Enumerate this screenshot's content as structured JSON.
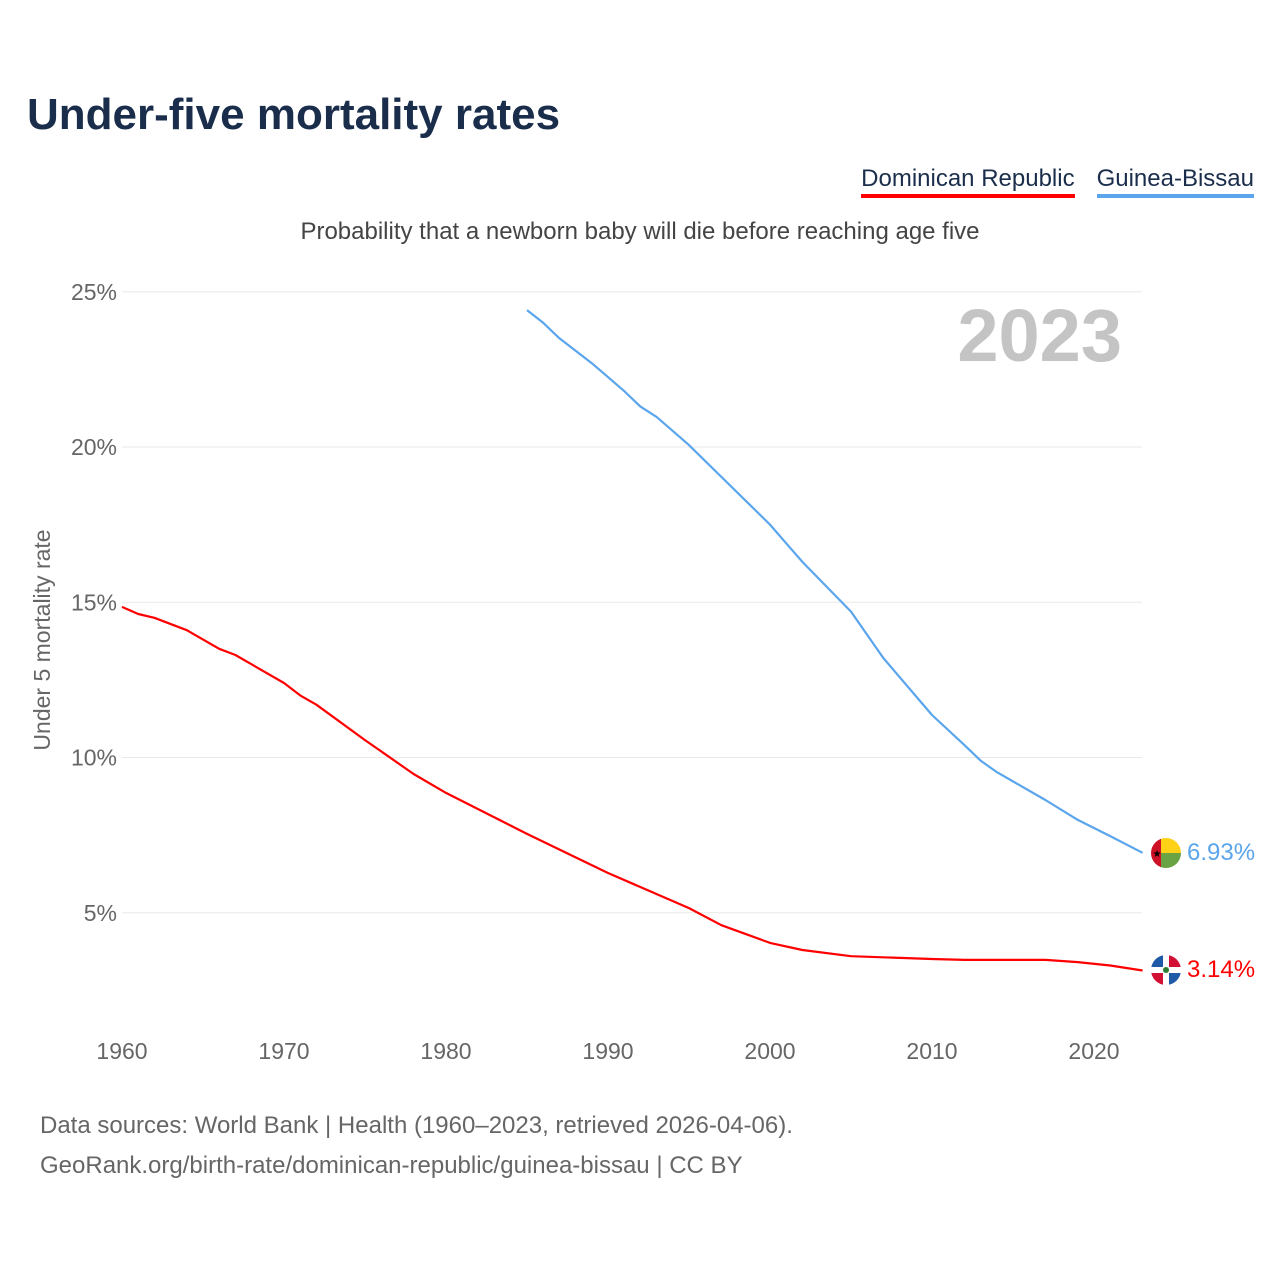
{
  "title": "Under-five mortality rates",
  "subtitle": "Probability that a newborn baby will die before reaching age five",
  "footer": {
    "line1": "Data sources: World Bank | Health (1960–2023, retrieved 2026-04-06).",
    "line2": "GeoRank.org/birth-rate/dominican-republic/guinea-bissau | CC BY"
  },
  "chart_data": {
    "type": "line",
    "title": "Under-five mortality rates",
    "ylabel": "Under 5 mortality rate",
    "xlabel": "",
    "year_label": "2023",
    "xlim": [
      1960,
      2023
    ],
    "ylim": [
      0,
      25
    ],
    "x_ticks": [
      "1960",
      "1970",
      "1980",
      "1990",
      "2000",
      "2010",
      "2020"
    ],
    "y_ticks": [
      {
        "v": 5,
        "label": "5%"
      },
      {
        "v": 10,
        "label": "10%"
      },
      {
        "v": 15,
        "label": "15%"
      },
      {
        "v": 20,
        "label": "20%"
      },
      {
        "v": 25,
        "label": "25%"
      }
    ],
    "grid": true,
    "legend_position": "top-right",
    "series": [
      {
        "name": "Dominican Republic",
        "color": "#ff0000",
        "end_label": "3.14%",
        "flag": "dominican-republic-flag",
        "points": [
          [
            1960,
            14.85
          ],
          [
            1961,
            14.62
          ],
          [
            1962,
            14.5
          ],
          [
            1964,
            14.1
          ],
          [
            1966,
            13.5
          ],
          [
            1967,
            13.3
          ],
          [
            1970,
            12.4
          ],
          [
            1971,
            12.0
          ],
          [
            1972,
            11.7
          ],
          [
            1975,
            10.56
          ],
          [
            1978,
            9.47
          ],
          [
            1980,
            8.86
          ],
          [
            1985,
            7.54
          ],
          [
            1990,
            6.28
          ],
          [
            1995,
            5.15
          ],
          [
            1997,
            4.6
          ],
          [
            2000,
            4.03
          ],
          [
            2002,
            3.8
          ],
          [
            2005,
            3.6
          ],
          [
            2010,
            3.51
          ],
          [
            2012,
            3.48
          ],
          [
            2017,
            3.48
          ],
          [
            2019,
            3.41
          ],
          [
            2021,
            3.3
          ],
          [
            2023,
            3.14
          ]
        ]
      },
      {
        "name": "Guinea-Bissau",
        "color": "#5aa5ec",
        "end_label": "6.93%",
        "flag": "guinea-bissau-flag",
        "points": [
          [
            1985,
            24.41
          ],
          [
            1986,
            24.0
          ],
          [
            1987,
            23.5
          ],
          [
            1989,
            22.7
          ],
          [
            1990,
            22.25
          ],
          [
            1991,
            21.8
          ],
          [
            1992,
            21.3
          ],
          [
            1993,
            20.97
          ],
          [
            1995,
            20.06
          ],
          [
            2000,
            17.5
          ],
          [
            2001,
            16.9
          ],
          [
            2002,
            16.3
          ],
          [
            2005,
            14.7
          ],
          [
            2006,
            13.95
          ],
          [
            2007,
            13.2
          ],
          [
            2010,
            11.37
          ],
          [
            2012,
            10.4
          ],
          [
            2013,
            9.9
          ],
          [
            2014,
            9.53
          ],
          [
            2017,
            8.63
          ],
          [
            2019,
            7.99
          ],
          [
            2021,
            7.47
          ],
          [
            2023,
            6.93
          ]
        ]
      }
    ]
  }
}
